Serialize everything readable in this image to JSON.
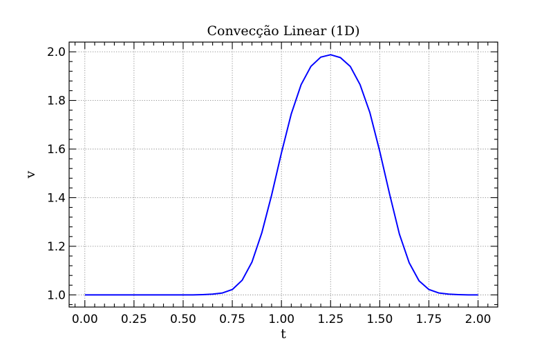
{
  "chart_data": {
    "type": "line",
    "title": "Convecção Linear (1D)",
    "xlabel": "t",
    "ylabel": "v",
    "xlim": [
      -0.08,
      2.1
    ],
    "ylim": [
      0.95,
      2.04
    ],
    "x_ticks": [
      0.0,
      0.25,
      0.5,
      0.75,
      1.0,
      1.25,
      1.5,
      1.75,
      2.0
    ],
    "x_tick_labels": [
      "0.00",
      "0.25",
      "0.50",
      "0.75",
      "1.00",
      "1.25",
      "1.50",
      "1.75",
      "2.00"
    ],
    "y_ticks": [
      1.0,
      1.2,
      1.4,
      1.6,
      1.8,
      2.0
    ],
    "y_tick_labels": [
      "1.0",
      "1.2",
      "1.4",
      "1.6",
      "1.8",
      "2.0"
    ],
    "grid": true,
    "series": [
      {
        "color": "#0000ff",
        "x": [
          0.0,
          0.05,
          0.1,
          0.15,
          0.2,
          0.25,
          0.3,
          0.35,
          0.4,
          0.45,
          0.5,
          0.55,
          0.6,
          0.65,
          0.7,
          0.75,
          0.8,
          0.85,
          0.9,
          0.95,
          1.0,
          1.05,
          1.1,
          1.15,
          1.2,
          1.25,
          1.3,
          1.35,
          1.4,
          1.45,
          1.5,
          1.55,
          1.6,
          1.65,
          1.7,
          1.75,
          1.8,
          1.85,
          1.9,
          1.95,
          2.0
        ],
        "y": [
          1.0,
          1.0,
          1.0,
          1.0,
          1.0,
          1.0,
          1.0,
          1.0,
          1.0,
          1.0,
          1.0,
          1.0,
          1.001,
          1.003,
          1.008,
          1.022,
          1.06,
          1.135,
          1.255,
          1.41,
          1.585,
          1.745,
          1.865,
          1.94,
          1.978,
          1.988,
          1.976,
          1.94,
          1.865,
          1.75,
          1.59,
          1.415,
          1.25,
          1.132,
          1.058,
          1.022,
          1.008,
          1.003,
          1.001,
          1.0,
          1.0
        ]
      }
    ]
  }
}
